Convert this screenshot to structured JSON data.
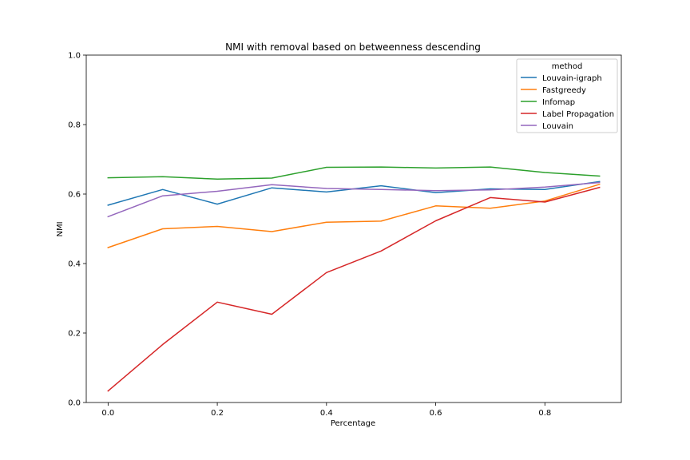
{
  "chart_data": {
    "type": "line",
    "title": "NMI with removal based on betweenness descending",
    "xlabel": "Percentage",
    "ylabel": "NMI",
    "xlim": [
      -0.04,
      0.94
    ],
    "ylim": [
      0.0,
      1.0
    ],
    "xticks": [
      "0.0",
      "0.2",
      "0.4",
      "0.6",
      "0.8"
    ],
    "yticks": [
      "0.0",
      "0.2",
      "0.4",
      "0.6",
      "0.8",
      "1.0"
    ],
    "grid": false,
    "legend": {
      "title": "method",
      "placement": "top-right"
    },
    "x": [
      0.0,
      0.1,
      0.2,
      0.3,
      0.4,
      0.5,
      0.6,
      0.7,
      0.8,
      0.9
    ],
    "series": [
      {
        "name": "Louvain-igraph",
        "color": "#1f77b4",
        "values": [
          0.568,
          0.613,
          0.571,
          0.618,
          0.606,
          0.624,
          0.604,
          0.615,
          0.613,
          0.636
        ]
      },
      {
        "name": "Fastgreedy",
        "color": "#ff7f0e",
        "values": [
          0.446,
          0.5,
          0.507,
          0.492,
          0.519,
          0.522,
          0.566,
          0.559,
          0.58,
          0.628
        ]
      },
      {
        "name": "Infomap",
        "color": "#2ca02c",
        "values": [
          0.647,
          0.65,
          0.643,
          0.646,
          0.677,
          0.678,
          0.675,
          0.678,
          0.662,
          0.652
        ]
      },
      {
        "name": "Label Propagation",
        "color": "#d62728",
        "values": [
          0.033,
          0.167,
          0.289,
          0.254,
          0.374,
          0.436,
          0.523,
          0.59,
          0.577,
          0.619
        ]
      },
      {
        "name": "Louvain",
        "color": "#9467bd",
        "values": [
          0.535,
          0.595,
          0.608,
          0.627,
          0.616,
          0.613,
          0.61,
          0.612,
          0.62,
          0.633
        ]
      }
    ]
  }
}
